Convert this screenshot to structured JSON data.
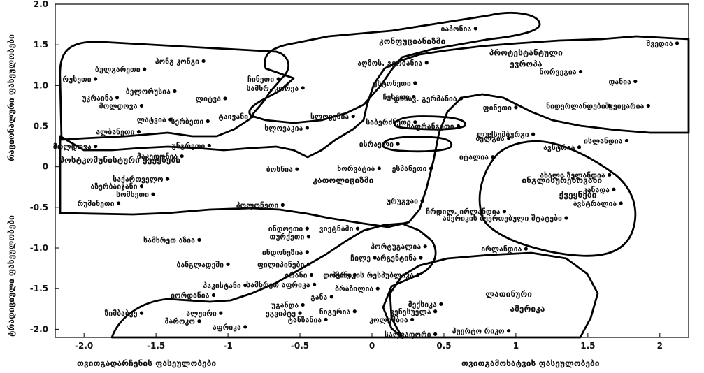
{
  "chart_data": {
    "type": "scatter",
    "title": "",
    "xlim": [
      -2.2,
      2.2
    ],
    "ylim": [
      -2.1,
      2.0
    ],
    "xticks": [
      "-2.0",
      "-1.5",
      "-1",
      "-0.5",
      "0",
      "0.5",
      "1",
      "1.5",
      "2"
    ],
    "yticks": [
      "2.0",
      "1.5",
      "1.0",
      "0.5",
      "0",
      "-0.5",
      "-1.0",
      "-1.5",
      "-2.0"
    ],
    "xlabel_left": "თვითგადარჩენის ფასეულობები",
    "xlabel_right": "თვითგამოხატვის ფასეულობები",
    "ylabel_top": "რაციონალური ფასეულობები",
    "ylabel_bottom": "ტრადიციული ფასეულობები",
    "zones": [
      {
        "label": "კონფუციანიზმი",
        "x": 0.28,
        "y": 1.51
      },
      {
        "label": "პროტესტანტული",
        "x": 1.07,
        "y": 1.37
      },
      {
        "label": "ევროპა",
        "x": 1.07,
        "y": 1.23
      },
      {
        "label": "პოსტკომუნისტური ქვეყნები",
        "x": -1.75,
        "y": 0.05
      },
      {
        "label": "კათოლიციზმი",
        "x": -0.2,
        "y": -0.2
      },
      {
        "label": "ინგლისურენოვანი",
        "x": 1.32,
        "y": -0.2
      },
      {
        "label": "ქვეყნები",
        "x": 1.43,
        "y": -0.38
      },
      {
        "label": "ლათინური",
        "x": 0.95,
        "y": -1.6
      },
      {
        "label": "ამერიკა",
        "x": 1.08,
        "y": -1.78
      }
    ],
    "points": [
      {
        "label": "იაპონია",
        "x": 0.72,
        "y": 1.7
      },
      {
        "label": "შვედია",
        "x": 2.12,
        "y": 1.52
      },
      {
        "label": "ჰონგ კონგი",
        "x": -1.17,
        "y": 1.3
      },
      {
        "label": "ბულგარეთი",
        "x": -1.58,
        "y": 1.2
      },
      {
        "label": "რუსეთი",
        "x": -1.92,
        "y": 1.08
      },
      {
        "label": "ჩინეთი",
        "x": -0.65,
        "y": 1.08
      },
      {
        "label": "აღმოს. გერმანია",
        "x": 0.38,
        "y": 1.28
      },
      {
        "label": "ნორვეგია",
        "x": 1.45,
        "y": 1.17
      },
      {
        "label": "დანია",
        "x": 1.83,
        "y": 1.05
      },
      {
        "label": "ესტონეთი",
        "x": 0.3,
        "y": 1.03
      },
      {
        "label": "ბელორუსია",
        "x": -1.37,
        "y": 0.93
      },
      {
        "label": "სამხრ. კორეა",
        "x": -0.48,
        "y": 0.97
      },
      {
        "label": "უკრაინა",
        "x": -1.77,
        "y": 0.85
      },
      {
        "label": "ლიტვა",
        "x": -1.02,
        "y": 0.84
      },
      {
        "label": "ჩეხეთი",
        "x": 0.29,
        "y": 0.86
      },
      {
        "label": "დასავ. გერმანია",
        "x": 0.62,
        "y": 0.84
      },
      {
        "label": "ფინეთი",
        "x": 1.0,
        "y": 0.73
      },
      {
        "label": "ნიდერლანდები",
        "x": 1.65,
        "y": 0.75
      },
      {
        "label": "მოლდოვა",
        "x": -1.6,
        "y": 0.75
      },
      {
        "label": "ტაივანი",
        "x": -0.83,
        "y": 0.62
      },
      {
        "label": "სლოვენია",
        "x": -0.13,
        "y": 0.62
      },
      {
        "label": "შვეიცარია",
        "x": 1.92,
        "y": 0.75
      },
      {
        "label": "ლატვია",
        "x": -1.4,
        "y": 0.58
      },
      {
        "label": "სერბეთი",
        "x": -1.14,
        "y": 0.56
      },
      {
        "label": "საბერძნეთი",
        "x": 0.3,
        "y": 0.55
      },
      {
        "label": "საფრანგეთი",
        "x": 0.6,
        "y": 0.5
      },
      {
        "label": "ალბანეთი",
        "x": -1.62,
        "y": 0.43
      },
      {
        "label": "სლოვაკია",
        "x": -0.45,
        "y": 0.48
      },
      {
        "label": "ლუქსემბურგი",
        "x": 1.12,
        "y": 0.4
      },
      {
        "label": "მოლდოვა",
        "x": -1.92,
        "y": 0.25
      },
      {
        "label": "უნგრეთი",
        "x": -1.13,
        "y": 0.26
      },
      {
        "label": "ბელგია",
        "x": 0.95,
        "y": 0.35
      },
      {
        "label": "ავსტრია",
        "x": 1.44,
        "y": 0.24
      },
      {
        "label": "ისლანდია",
        "x": 1.77,
        "y": 0.32
      },
      {
        "label": "ისრაელი",
        "x": 0.18,
        "y": 0.28
      },
      {
        "label": "მაკედონია",
        "x": -1.32,
        "y": 0.13
      },
      {
        "label": "იტალია",
        "x": 0.84,
        "y": 0.12
      },
      {
        "label": "ბოსნია",
        "x": -0.52,
        "y": -0.03
      },
      {
        "label": "ხორვატია",
        "x": 0.05,
        "y": -0.02
      },
      {
        "label": "ესპანეთი",
        "x": 0.41,
        "y": -0.02
      },
      {
        "label": "ახალი ზელანდია",
        "x": 1.65,
        "y": -0.1
      },
      {
        "label": "საქართველო",
        "x": -1.42,
        "y": -0.15
      },
      {
        "label": "აზერბაიჯანი",
        "x": -1.6,
        "y": -0.24
      },
      {
        "label": "სომხეთი",
        "x": -1.52,
        "y": -0.34
      },
      {
        "label": "კანადა",
        "x": 1.68,
        "y": -0.28
      },
      {
        "label": "რუმინეთი",
        "x": -1.76,
        "y": -0.45
      },
      {
        "label": "ურუგვაი",
        "x": 0.35,
        "y": -0.42
      },
      {
        "label": "ავსტრალია",
        "x": 1.73,
        "y": -0.45
      },
      {
        "label": "პოლონეთი",
        "x": -0.62,
        "y": -0.47
      },
      {
        "label": "ჩრდილ. ირლანდია",
        "x": 0.92,
        "y": -0.55
      },
      {
        "label": "ამერიკის შეერთებული შტატები",
        "x": 1.35,
        "y": -0.63
      },
      {
        "label": "ინდოეთი",
        "x": -0.45,
        "y": -0.76
      },
      {
        "label": "ვიეტნამი",
        "x": -0.1,
        "y": -0.76
      },
      {
        "label": "სამხრეთ აზია",
        "x": -1.2,
        "y": -0.9
      },
      {
        "label": "თურქეთი",
        "x": -0.44,
        "y": -0.86
      },
      {
        "label": "პორტუგალია",
        "x": 0.37,
        "y": -0.98
      },
      {
        "label": "ირლანდია",
        "x": 1.07,
        "y": -1.01
      },
      {
        "label": "ინდონეზია",
        "x": -0.45,
        "y": -1.05
      },
      {
        "label": "ჩილე",
        "x": 0.02,
        "y": -1.12
      },
      {
        "label": "არგენტინა",
        "x": 0.34,
        "y": -1.12
      },
      {
        "label": "ბანგლადეში",
        "x": -1.0,
        "y": -1.2
      },
      {
        "label": "ფილიპინები",
        "x": -0.44,
        "y": -1.2
      },
      {
        "label": "ირანი",
        "x": -0.42,
        "y": -1.33
      },
      {
        "label": "პერუ",
        "x": -0.12,
        "y": -1.33
      },
      {
        "label": "დომინიკის რესპუბლიკა",
        "x": 0.32,
        "y": -1.33
      },
      {
        "label": "პაკისტანი",
        "x": -0.88,
        "y": -1.46
      },
      {
        "label": "სამხრეთ აფრიკა",
        "x": -0.4,
        "y": -1.45
      },
      {
        "label": "ბრაზილია",
        "x": 0.04,
        "y": -1.5
      },
      {
        "label": "იორდანია",
        "x": -1.1,
        "y": -1.58
      },
      {
        "label": "განა",
        "x": -0.28,
        "y": -1.6
      },
      {
        "label": "უგანდა",
        "x": -0.48,
        "y": -1.7
      },
      {
        "label": "მექსიკა",
        "x": 0.48,
        "y": -1.69
      },
      {
        "label": "ზიმბაბვე",
        "x": -1.6,
        "y": -1.8
      },
      {
        "label": "ალჟირი",
        "x": -1.05,
        "y": -1.8
      },
      {
        "label": "ეგვიპტე",
        "x": -0.5,
        "y": -1.8
      },
      {
        "label": "ნიგერია",
        "x": -0.12,
        "y": -1.78
      },
      {
        "label": "ვენესუელა",
        "x": 0.44,
        "y": -1.78
      },
      {
        "label": "ტანზანია",
        "x": -0.32,
        "y": -1.88
      },
      {
        "label": "კოლუმბია",
        "x": 0.28,
        "y": -1.88
      },
      {
        "label": "მაროკო",
        "x": -1.2,
        "y": -1.9
      },
      {
        "label": "აფრიკა",
        "x": -0.88,
        "y": -1.97
      },
      {
        "label": "პუერტო რიკო",
        "x": 0.95,
        "y": -2.02
      },
      {
        "label": "სალვადორი",
        "x": 0.44,
        "y": -2.06
      }
    ],
    "regions": [
      [
        [
          -2.15,
          0.05
        ],
        [
          -2.15,
          1.1
        ],
        [
          -2.12,
          1.05
        ],
        [
          -1.8,
          1.22
        ],
        [
          -1.2,
          1.23
        ],
        [
          -0.8,
          1.2
        ],
        [
          -0.68,
          1.23
        ],
        [
          -0.58,
          1.15
        ],
        [
          -0.66,
          1.05
        ],
        [
          -0.9,
          0.88
        ],
        [
          -1.0,
          0.73
        ],
        [
          -0.93,
          0.6
        ],
        [
          -0.8,
          0.53
        ],
        [
          -0.55,
          0.52
        ],
        [
          -0.35,
          0.53
        ],
        [
          -0.1,
          0.62
        ],
        [
          0.05,
          0.8
        ],
        [
          0.08,
          1.12
        ],
        [
          0.2,
          1.28
        ],
        [
          0.4,
          1.3
        ],
        [
          0.6,
          1.26
        ],
        [
          0.8,
          1.28
        ],
        [
          1.0,
          1.35
        ],
        [
          1.3,
          1.5
        ],
        [
          1.8,
          1.55
        ],
        [
          2.1,
          1.55
        ],
        [
          2.15,
          1.6
        ],
        [
          2.15,
          0.22
        ],
        [
          1.95,
          0.22
        ],
        [
          1.8,
          0.28
        ],
        [
          1.5,
          0.35
        ],
        [
          1.3,
          0.38
        ],
        [
          1.0,
          0.4
        ],
        [
          0.78,
          0.33
        ],
        [
          0.68,
          0.2
        ],
        [
          0.56,
          0.05
        ],
        [
          0.55,
          -0.2
        ],
        [
          0.46,
          -0.3
        ],
        [
          0.38,
          -0.5
        ],
        [
          0.45,
          -0.8
        ],
        [
          0.3,
          -0.95
        ],
        [
          0.07,
          -1.05
        ],
        [
          -0.05,
          -1.2
        ],
        [
          -0.18,
          -1.35
        ],
        [
          -0.4,
          -1.48
        ],
        [
          -0.55,
          -1.55
        ],
        [
          -0.68,
          -1.52
        ],
        [
          -0.8,
          -1.6
        ],
        [
          -0.9,
          -1.65
        ],
        [
          -1.0,
          -1.72
        ],
        [
          -1.5,
          -1.78
        ],
        [
          -1.95,
          -1.85
        ],
        [
          -2.12,
          -2.0
        ],
        [
          -2.15,
          -1.55
        ],
        [
          -2.15,
          0.05
        ]
      ]
    ]
  }
}
